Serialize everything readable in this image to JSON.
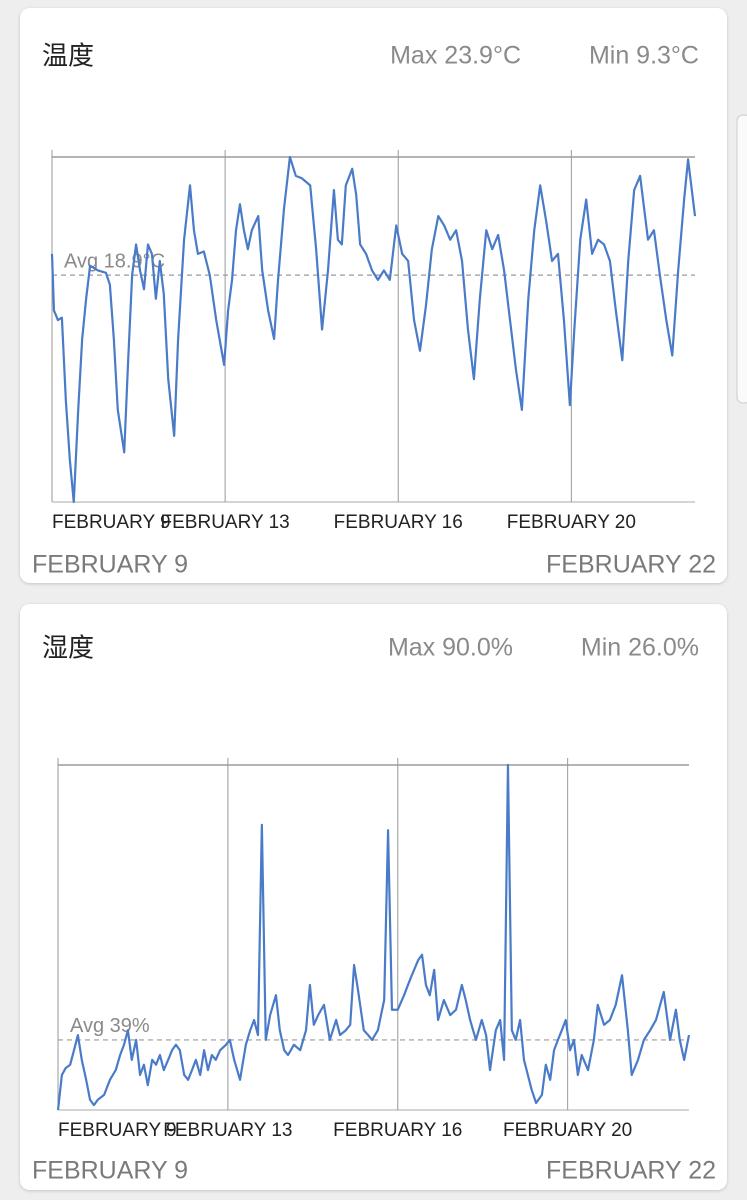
{
  "chart_data": [
    {
      "type": "line",
      "title": "温度",
      "max": {
        "value": 23.9,
        "label": "Max 23.9°C"
      },
      "min": {
        "value": 9.3,
        "label": "Min 9.3°C"
      },
      "average": {
        "value": 18.9,
        "label": "Avg 18.9°C"
      },
      "range_start": "FEBRUARY 9",
      "range_end": "FEBRUARY 22",
      "xlim": [
        0,
        13
      ],
      "ylim": [
        9.3,
        23.9
      ],
      "xticks": [
        {
          "value": 0,
          "label": "FEBRUARY 9"
        },
        {
          "value": 3.5,
          "label": "FEBRUARY 13"
        },
        {
          "value": 7,
          "label": "FEBRUARY 16"
        },
        {
          "value": 10.5,
          "label": "FEBRUARY 20"
        }
      ],
      "color": "#4a7bc8",
      "x": [
        0,
        0.04,
        0.12,
        0.2,
        0.28,
        0.36,
        0.44,
        0.53,
        0.61,
        0.69,
        0.77,
        0.93,
        1.09,
        1.17,
        1.25,
        1.33,
        1.46,
        1.54,
        1.62,
        1.7,
        1.78,
        1.86,
        1.94,
        2.02,
        2.1,
        2.18,
        2.26,
        2.35,
        2.47,
        2.55,
        2.67,
        2.79,
        2.87,
        2.95,
        3.07,
        3.19,
        3.32,
        3.48,
        3.56,
        3.64,
        3.72,
        3.8,
        3.88,
        3.96,
        4.04,
        4.17,
        4.25,
        4.37,
        4.49,
        4.57,
        4.69,
        4.81,
        4.93,
        5.05,
        5.22,
        5.34,
        5.46,
        5.58,
        5.7,
        5.78,
        5.86,
        5.94,
        6.07,
        6.15,
        6.23,
        6.35,
        6.47,
        6.59,
        6.71,
        6.83,
        6.96,
        7.08,
        7.2,
        7.32,
        7.44,
        7.56,
        7.68,
        7.81,
        7.93,
        8.05,
        8.17,
        8.29,
        8.41,
        8.53,
        8.65,
        8.78,
        8.9,
        9.02,
        9.14,
        9.26,
        9.38,
        9.5,
        9.63,
        9.75,
        9.87,
        9.99,
        10.11,
        10.23,
        10.35,
        10.47,
        10.56,
        10.68,
        10.8,
        10.92,
        11.04,
        11.16,
        11.28,
        11.4,
        11.53,
        11.65,
        11.77,
        11.89,
        12.05,
        12.17,
        12.29,
        12.42,
        12.54,
        12.66,
        12.78,
        12.86,
        13
      ],
      "values": [
        19.8,
        17.4,
        17.0,
        17.1,
        13.6,
        11.1,
        9.3,
        13.2,
        16.2,
        17.9,
        19.3,
        19.1,
        19.0,
        18.5,
        16.2,
        13.2,
        11.4,
        15.3,
        18.9,
        20.2,
        19.1,
        18.3,
        20.2,
        19.8,
        17.9,
        19.5,
        18.1,
        14.5,
        12.1,
        16.2,
        20.4,
        22.7,
        20.8,
        19.8,
        19.9,
        18.9,
        17.0,
        15.1,
        17.4,
        18.7,
        20.8,
        21.9,
        20.8,
        20.0,
        20.8,
        21.4,
        19.1,
        17.4,
        16.2,
        18.7,
        21.7,
        23.9,
        23.1,
        23.0,
        22.7,
        20.0,
        16.6,
        19.1,
        22.5,
        20.4,
        20.2,
        22.7,
        23.4,
        22.3,
        20.2,
        19.8,
        19.1,
        18.7,
        19.1,
        18.7,
        21.0,
        19.8,
        19.5,
        17.0,
        15.7,
        17.6,
        20.0,
        21.4,
        21.0,
        20.4,
        20.8,
        19.5,
        16.6,
        14.5,
        17.9,
        20.8,
        20.0,
        20.6,
        19.1,
        17.0,
        14.9,
        13.2,
        17.9,
        20.8,
        22.7,
        21.2,
        19.5,
        19.8,
        17.0,
        13.4,
        16.6,
        20.4,
        22.1,
        19.8,
        20.4,
        20.2,
        19.5,
        17.4,
        15.3,
        19.5,
        22.5,
        23.1,
        20.4,
        20.8,
        18.9,
        17.0,
        15.5,
        19.1,
        22.1,
        23.8,
        21.4
      ]
    },
    {
      "type": "line",
      "title": "湿度",
      "max": {
        "value": 90.0,
        "label": "Max 90.0%"
      },
      "min": {
        "value": 26.0,
        "label": "Min 26.0%"
      },
      "average": {
        "value": 39,
        "label": "Avg 39%"
      },
      "range_start": "FEBRUARY 9",
      "range_end": "FEBRUARY 22",
      "xlim": [
        0,
        13
      ],
      "ylim": [
        26.0,
        90.0
      ],
      "xticks": [
        {
          "value": 0,
          "label": "FEBRUARY 9"
        },
        {
          "value": 3.5,
          "label": "FEBRUARY 13"
        },
        {
          "value": 7,
          "label": "FEBRUARY 16"
        },
        {
          "value": 10.5,
          "label": "FEBRUARY 20"
        }
      ],
      "color": "#4a7bc8",
      "x": [
        0,
        0.08,
        0.16,
        0.25,
        0.33,
        0.41,
        0.49,
        0.58,
        0.66,
        0.74,
        0.82,
        0.95,
        1.07,
        1.19,
        1.28,
        1.36,
        1.44,
        1.52,
        1.61,
        1.69,
        1.77,
        1.85,
        1.94,
        2.02,
        2.1,
        2.18,
        2.27,
        2.35,
        2.43,
        2.51,
        2.6,
        2.68,
        2.76,
        2.84,
        2.93,
        3.01,
        3.09,
        3.17,
        3.25,
        3.34,
        3.46,
        3.54,
        3.63,
        3.75,
        3.87,
        3.96,
        4.04,
        4.12,
        4.2,
        4.28,
        4.37,
        4.49,
        4.57,
        4.66,
        4.74,
        4.86,
        4.99,
        5.11,
        5.19,
        5.27,
        5.36,
        5.48,
        5.6,
        5.73,
        5.81,
        5.93,
        6.02,
        6.1,
        6.18,
        6.3,
        6.39,
        6.47,
        6.59,
        6.72,
        6.8,
        6.88,
        7,
        7.13,
        7.21,
        7.29,
        7.42,
        7.5,
        7.58,
        7.66,
        7.75,
        7.83,
        7.95,
        8.08,
        8.2,
        8.32,
        8.4,
        8.49,
        8.61,
        8.73,
        8.82,
        8.9,
        9.02,
        9.11,
        9.19,
        9.27,
        9.35,
        9.43,
        9.52,
        9.6,
        9.68,
        9.76,
        9.85,
        9.97,
        10.05,
        10.14,
        10.22,
        10.3,
        10.38,
        10.46,
        10.55,
        10.63,
        10.71,
        10.79,
        10.92,
        11.04,
        11.12,
        11.25,
        11.37,
        11.49,
        11.62,
        11.74,
        11.82,
        11.95,
        12.07,
        12.2,
        12.32,
        12.48,
        12.61,
        12.73,
        12.81,
        12.9,
        13
      ],
      "values": [
        26.0,
        32.5,
        33.8,
        34.4,
        37.1,
        39.9,
        35.3,
        31.6,
        27.9,
        26.9,
        27.9,
        28.8,
        31.6,
        33.4,
        36.2,
        38.1,
        40.8,
        35.3,
        39.0,
        32.5,
        34.4,
        30.6,
        35.3,
        34.4,
        36.2,
        33.4,
        35.3,
        37.1,
        38.1,
        37.1,
        32.5,
        31.6,
        33.4,
        35.3,
        32.5,
        37.1,
        33.4,
        36.2,
        35.3,
        37.1,
        38.1,
        39.0,
        35.3,
        31.6,
        38.1,
        40.8,
        42.7,
        39.9,
        78.9,
        39.0,
        43.6,
        47.3,
        40.8,
        37.1,
        36.2,
        38.1,
        37.1,
        40.8,
        49.2,
        41.8,
        43.6,
        45.5,
        39.0,
        42.7,
        39.9,
        40.8,
        41.8,
        52.9,
        48.3,
        40.8,
        39.9,
        39.0,
        40.8,
        46.4,
        77.9,
        44.6,
        44.6,
        47.3,
        49.2,
        51.0,
        53.8,
        54.8,
        49.2,
        47.3,
        52.0,
        42.7,
        46.4,
        43.6,
        44.6,
        49.2,
        46.4,
        42.7,
        39.0,
        42.7,
        39.9,
        33.4,
        40.8,
        42.7,
        35.3,
        90.0,
        40.8,
        39.0,
        42.7,
        35.3,
        32.5,
        29.7,
        27.3,
        28.8,
        34.4,
        31.6,
        37.1,
        39.0,
        40.8,
        42.7,
        37.1,
        39.0,
        32.5,
        36.2,
        33.4,
        39.0,
        45.5,
        41.8,
        42.7,
        45.5,
        51.0,
        40.8,
        32.5,
        35.3,
        39.0,
        40.8,
        42.7,
        47.9,
        39.0,
        44.6,
        39.0,
        35.3,
        39.9
      ]
    }
  ]
}
